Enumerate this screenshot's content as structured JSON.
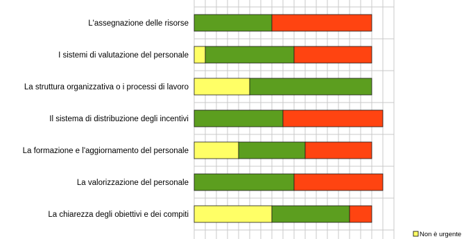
{
  "chart_data": {
    "type": "bar",
    "orientation": "horizontal",
    "stacked": true,
    "grid": true,
    "legend_position": "bottom-right",
    "categories": [
      "L'assegnazione delle risorse",
      "I sistemi di valutazione del personale",
      "La struttura organizzativa o i processi di lavoro",
      "Il sistema di distribuzione degli incentivi",
      "La formazione e l'aggiornamento del personale",
      "La valorizzazione del personale",
      "La chiarezza degli obiettivi e dei compiti"
    ],
    "series": [
      {
        "name": "Non è urgente",
        "color": "#FFFF66",
        "values": [
          0,
          1,
          5,
          0,
          4,
          0,
          7
        ]
      },
      {
        "name": "",
        "color": "#5C9E1F",
        "values": [
          7,
          8,
          11,
          8,
          6,
          9,
          7
        ]
      },
      {
        "name": "",
        "color": "#FF4411",
        "values": [
          9,
          7,
          0,
          9,
          6,
          8,
          2
        ]
      }
    ],
    "xlim": [
      0,
      18
    ]
  }
}
